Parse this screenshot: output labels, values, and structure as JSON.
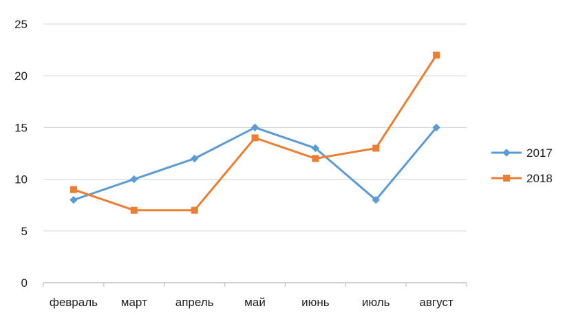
{
  "chart_data": {
    "type": "line",
    "categories": [
      "февраль",
      "март",
      "апрель",
      "май",
      "июнь",
      "июль",
      "август"
    ],
    "series": [
      {
        "name": "2017",
        "values": [
          8,
          10,
          12,
          15,
          13,
          8,
          15
        ],
        "color": "#5b9bd5",
        "marker": "diamond"
      },
      {
        "name": "2018",
        "values": [
          9,
          7,
          7,
          14,
          12,
          13,
          22
        ],
        "color": "#ed7d31",
        "marker": "square"
      }
    ],
    "ylim": [
      0,
      25
    ],
    "yticks": [
      0,
      5,
      10,
      15,
      20,
      25
    ],
    "grid": true,
    "legend_position": "right",
    "title": "",
    "xlabel": "",
    "ylabel": ""
  }
}
